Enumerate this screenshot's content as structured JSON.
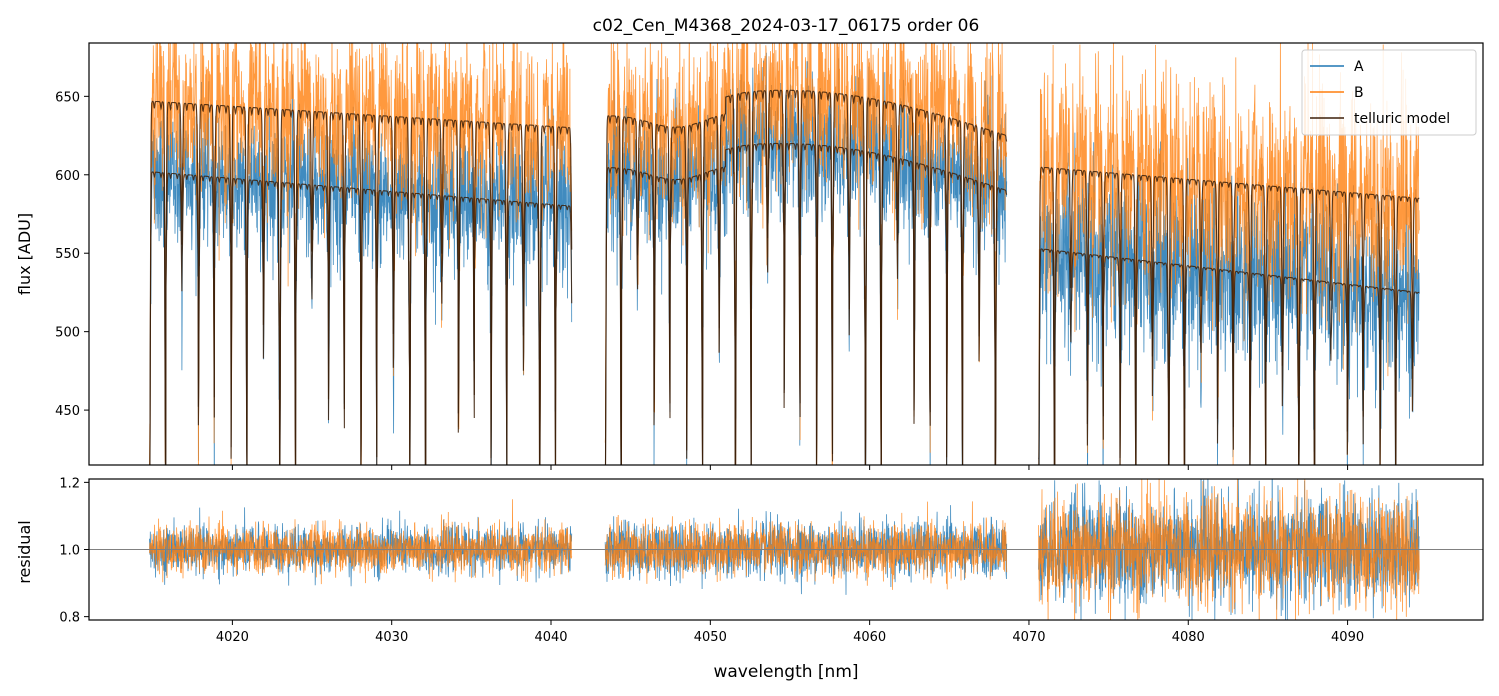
{
  "title": "c02_Cen_M4368_2024-03-17_06175  order 06",
  "colors": {
    "A": "#1f77b4",
    "B": "#ff7f0e",
    "model": "#3b1e08",
    "axis": "#000000",
    "refline": "#808080"
  },
  "chart_data": [
    {
      "panel": "flux",
      "type": "line",
      "xlabel": "",
      "ylabel": "flux [ADU]",
      "xlim": [
        4011,
        4098.5
      ],
      "ylim": [
        415,
        684
      ],
      "yticks": [
        450,
        500,
        550,
        600,
        650
      ],
      "legend_position": "top-right",
      "legend": [
        "A",
        "B",
        "telluric model"
      ],
      "segments": [
        {
          "x_range": [
            4014.8,
            4041.3
          ],
          "model_A_continuum_start": 602,
          "model_A_continuum_end": 580,
          "model_B_continuum_start": 647,
          "model_B_continuum_end": 630
        },
        {
          "x_range": [
            4043.4,
            4068.6
          ],
          "model_A_continuum_start": 605,
          "model_A_continuum_end": 590,
          "model_B_continuum_start": 638,
          "model_B_continuum_end": 625
        },
        {
          "x_range": [
            4070.6,
            4094.5
          ],
          "model_A_continuum_start": 553,
          "model_A_continuum_end": 525,
          "model_B_continuum_start": 605,
          "model_B_continuum_end": 585
        }
      ],
      "telluric_line_spacing_nm": 1.02,
      "deep_line_depth_to_ADU": 415
    },
    {
      "panel": "residual",
      "type": "line",
      "xlabel": "wavelength [nm]",
      "ylabel": "residual",
      "xlim": [
        4011,
        4098.5
      ],
      "ylim": [
        0.79,
        1.21
      ],
      "xticks": [
        4020,
        4030,
        4040,
        4050,
        4060,
        4070,
        4080,
        4090
      ],
      "yticks": [
        0.8,
        1.0,
        1.2
      ],
      "reference_line": 1.0,
      "noise_sigma": [
        {
          "x_range": [
            4014.8,
            4041.3
          ],
          "sigma": 0.035
        },
        {
          "x_range": [
            4043.4,
            4068.6
          ],
          "sigma": 0.04
        },
        {
          "x_range": [
            4070.6,
            4094.5
          ],
          "sigma": 0.08
        }
      ]
    }
  ],
  "tick_labels": {
    "x": [
      "4020",
      "4030",
      "4040",
      "4050",
      "4060",
      "4070",
      "4080",
      "4090"
    ],
    "flux_y": [
      "450",
      "500",
      "550",
      "600",
      "650"
    ],
    "residual_y": [
      "0.8",
      "1.0",
      "1.2"
    ]
  }
}
